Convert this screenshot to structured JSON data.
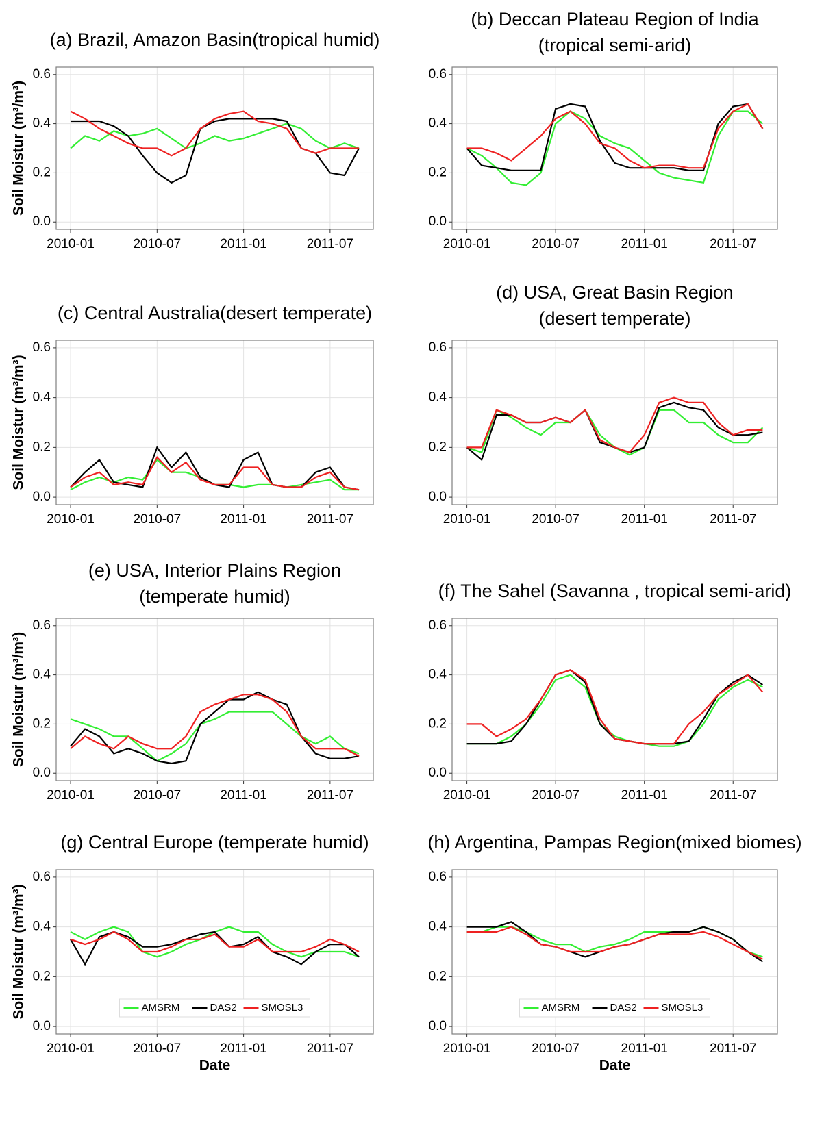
{
  "chart_data": [
    {
      "type": "line",
      "title": [
        "(a) Brazil, Amazon Basin(tropical humid)"
      ],
      "ylabel": "Soil Moistur (m³/m³)",
      "x": [
        "2010-01",
        "2010-02",
        "2010-03",
        "2010-04",
        "2010-05",
        "2010-06",
        "2010-07",
        "2010-08",
        "2010-09",
        "2010-10",
        "2010-11",
        "2010-12",
        "2011-01",
        "2011-02",
        "2011-03",
        "2011-04",
        "2011-05",
        "2011-06",
        "2011-07",
        "2011-08",
        "2011-09"
      ],
      "xlim": [
        "2009-12",
        "2011-10"
      ],
      "xticks": [
        "2010-01",
        "2010-07",
        "2011-01",
        "2011-07"
      ],
      "ylim": [
        -0.03,
        0.63
      ],
      "yticks": [
        {
          "value": 0,
          "label": "0.0"
        },
        0.2,
        0.4,
        0.6
      ],
      "grid": true,
      "series": [
        {
          "color": "#33ee33",
          "values": [
            0.3,
            0.35,
            0.33,
            0.37,
            0.35,
            0.36,
            0.38,
            0.34,
            0.3,
            0.32,
            0.35,
            0.33,
            0.34,
            0.36,
            0.38,
            0.4,
            0.38,
            0.33,
            0.3,
            0.32,
            0.3
          ]
        },
        {
          "color": "#000000",
          "values": [
            0.41,
            0.41,
            0.41,
            0.39,
            0.35,
            0.27,
            0.2,
            0.16,
            0.19,
            0.38,
            0.41,
            0.42,
            0.42,
            0.42,
            0.42,
            0.41,
            0.3,
            0.28,
            0.2,
            0.19,
            0.3
          ]
        },
        {
          "color": "#ee2222",
          "values": [
            0.45,
            0.42,
            0.38,
            0.35,
            0.32,
            0.3,
            0.3,
            0.27,
            0.3,
            0.38,
            0.42,
            0.44,
            0.45,
            0.41,
            0.4,
            0.38,
            0.3,
            0.28,
            0.3,
            0.3,
            0.3
          ]
        }
      ]
    },
    {
      "type": "line",
      "title": [
        "(b) Deccan Plateau Region of India",
        "(tropical semi-arid)"
      ],
      "x": [
        "2010-01",
        "2010-02",
        "2010-03",
        "2010-04",
        "2010-05",
        "2010-06",
        "2010-07",
        "2010-08",
        "2010-09",
        "2010-10",
        "2010-11",
        "2010-12",
        "2011-01",
        "2011-02",
        "2011-03",
        "2011-04",
        "2011-05",
        "2011-06",
        "2011-07",
        "2011-08",
        "2011-09"
      ],
      "xlim": [
        "2009-12",
        "2011-10"
      ],
      "xticks": [
        "2010-01",
        "2010-07",
        "2011-01",
        "2011-07"
      ],
      "ylim": [
        -0.03,
        0.63
      ],
      "yticks": [
        {
          "value": 0,
          "label": "0.0"
        },
        0.2,
        0.4,
        0.6
      ],
      "grid": true,
      "series": [
        {
          "color": "#33ee33",
          "values": [
            0.3,
            0.27,
            0.22,
            0.16,
            0.15,
            0.2,
            0.4,
            0.45,
            0.42,
            0.35,
            0.32,
            0.3,
            0.25,
            0.2,
            0.18,
            0.17,
            0.16,
            0.35,
            0.45,
            0.45,
            0.4
          ]
        },
        {
          "color": "#000000",
          "values": [
            0.3,
            0.23,
            0.22,
            0.21,
            0.21,
            0.21,
            0.46,
            0.48,
            0.47,
            0.33,
            0.24,
            0.22,
            0.22,
            0.22,
            0.22,
            0.21,
            0.21,
            0.4,
            0.47,
            0.48,
            0.38
          ]
        },
        {
          "color": "#ee2222",
          "values": [
            0.3,
            0.3,
            0.28,
            0.25,
            0.3,
            0.35,
            0.42,
            0.45,
            0.4,
            0.32,
            0.3,
            0.25,
            0.22,
            0.23,
            0.23,
            0.22,
            0.22,
            0.38,
            0.45,
            0.48,
            0.38
          ]
        }
      ]
    },
    {
      "type": "line",
      "title": [
        "(c) Central Australia(desert temperate)"
      ],
      "ylabel": "Soil Moistur (m³/m³)",
      "x": [
        "2010-01",
        "2010-02",
        "2010-03",
        "2010-04",
        "2010-05",
        "2010-06",
        "2010-07",
        "2010-08",
        "2010-09",
        "2010-10",
        "2010-11",
        "2010-12",
        "2011-01",
        "2011-02",
        "2011-03",
        "2011-04",
        "2011-05",
        "2011-06",
        "2011-07",
        "2011-08",
        "2011-09"
      ],
      "xlim": [
        "2009-12",
        "2011-10"
      ],
      "xticks": [
        "2010-01",
        "2010-07",
        "2011-01",
        "2011-07"
      ],
      "ylim": [
        -0.03,
        0.63
      ],
      "yticks": [
        {
          "value": 0,
          "label": "0.0"
        },
        0.2,
        0.4,
        0.6
      ],
      "grid": true,
      "series": [
        {
          "color": "#33ee33",
          "values": [
            0.03,
            0.06,
            0.08,
            0.06,
            0.08,
            0.07,
            0.15,
            0.1,
            0.1,
            0.08,
            0.05,
            0.05,
            0.04,
            0.05,
            0.05,
            0.04,
            0.05,
            0.06,
            0.07,
            0.03,
            0.03
          ]
        },
        {
          "color": "#000000",
          "values": [
            0.04,
            0.1,
            0.15,
            0.06,
            0.05,
            0.04,
            0.2,
            0.12,
            0.18,
            0.08,
            0.05,
            0.04,
            0.15,
            0.18,
            0.05,
            0.04,
            0.04,
            0.1,
            0.12,
            0.04,
            0.03
          ]
        },
        {
          "color": "#ee2222",
          "values": [
            0.04,
            0.08,
            0.1,
            0.05,
            0.06,
            0.05,
            0.16,
            0.1,
            0.14,
            0.07,
            0.05,
            0.05,
            0.12,
            0.12,
            0.05,
            0.04,
            0.04,
            0.08,
            0.1,
            0.04,
            0.03
          ]
        }
      ]
    },
    {
      "type": "line",
      "title": [
        "(d) USA, Great Basin Region",
        "(desert temperate)"
      ],
      "x": [
        "2010-01",
        "2010-02",
        "2010-03",
        "2010-04",
        "2010-05",
        "2010-06",
        "2010-07",
        "2010-08",
        "2010-09",
        "2010-10",
        "2010-11",
        "2010-12",
        "2011-01",
        "2011-02",
        "2011-03",
        "2011-04",
        "2011-05",
        "2011-06",
        "2011-07",
        "2011-08",
        "2011-09"
      ],
      "xlim": [
        "2009-12",
        "2011-10"
      ],
      "xticks": [
        "2010-01",
        "2010-07",
        "2011-01",
        "2011-07"
      ],
      "ylim": [
        -0.03,
        0.63
      ],
      "yticks": [
        {
          "value": 0,
          "label": "0.0"
        },
        0.2,
        0.4,
        0.6
      ],
      "grid": true,
      "series": [
        {
          "color": "#33ee33",
          "values": [
            0.2,
            0.18,
            0.35,
            0.32,
            0.28,
            0.25,
            0.3,
            0.3,
            0.35,
            0.25,
            0.2,
            0.17,
            0.2,
            0.35,
            0.35,
            0.3,
            0.3,
            0.25,
            0.22,
            0.22,
            0.28
          ]
        },
        {
          "color": "#000000",
          "values": [
            0.2,
            0.15,
            0.33,
            0.33,
            0.3,
            0.3,
            0.32,
            0.3,
            0.35,
            0.22,
            0.2,
            0.18,
            0.2,
            0.36,
            0.38,
            0.36,
            0.35,
            0.28,
            0.25,
            0.25,
            0.26
          ]
        },
        {
          "color": "#ee2222",
          "values": [
            0.2,
            0.2,
            0.35,
            0.33,
            0.3,
            0.3,
            0.32,
            0.3,
            0.35,
            0.23,
            0.2,
            0.18,
            0.25,
            0.38,
            0.4,
            0.38,
            0.38,
            0.3,
            0.25,
            0.27,
            0.27
          ]
        }
      ]
    },
    {
      "type": "line",
      "title": [
        "(e) USA, Interior Plains Region",
        "(temperate humid)"
      ],
      "ylabel": "Soil Moistur (m³/m³)",
      "x": [
        "2010-01",
        "2010-02",
        "2010-03",
        "2010-04",
        "2010-05",
        "2010-06",
        "2010-07",
        "2010-08",
        "2010-09",
        "2010-10",
        "2010-11",
        "2010-12",
        "2011-01",
        "2011-02",
        "2011-03",
        "2011-04",
        "2011-05",
        "2011-06",
        "2011-07",
        "2011-08",
        "2011-09"
      ],
      "xlim": [
        "2009-12",
        "2011-10"
      ],
      "xticks": [
        "2010-01",
        "2010-07",
        "2011-01",
        "2011-07"
      ],
      "ylim": [
        -0.03,
        0.63
      ],
      "yticks": [
        {
          "value": 0,
          "label": "0.0"
        },
        0.2,
        0.4,
        0.6
      ],
      "grid": true,
      "series": [
        {
          "color": "#33ee33",
          "values": [
            0.22,
            0.2,
            0.18,
            0.15,
            0.15,
            0.1,
            0.05,
            0.08,
            0.12,
            0.2,
            0.22,
            0.25,
            0.25,
            0.25,
            0.25,
            0.2,
            0.15,
            0.12,
            0.15,
            0.1,
            0.08
          ]
        },
        {
          "color": "#000000",
          "values": [
            0.11,
            0.18,
            0.15,
            0.08,
            0.1,
            0.08,
            0.05,
            0.04,
            0.05,
            0.2,
            0.25,
            0.3,
            0.3,
            0.33,
            0.3,
            0.28,
            0.15,
            0.08,
            0.06,
            0.06,
            0.07
          ]
        },
        {
          "color": "#ee2222",
          "values": [
            0.1,
            0.15,
            0.12,
            0.1,
            0.15,
            0.12,
            0.1,
            0.1,
            0.15,
            0.25,
            0.28,
            0.3,
            0.32,
            0.32,
            0.3,
            0.25,
            0.15,
            0.1,
            0.1,
            0.1,
            0.07
          ]
        }
      ]
    },
    {
      "type": "line",
      "title": [
        "(f) The Sahel (Savanna , tropical semi-arid)"
      ],
      "x": [
        "2010-01",
        "2010-02",
        "2010-03",
        "2010-04",
        "2010-05",
        "2010-06",
        "2010-07",
        "2010-08",
        "2010-09",
        "2010-10",
        "2010-11",
        "2010-12",
        "2011-01",
        "2011-02",
        "2011-03",
        "2011-04",
        "2011-05",
        "2011-06",
        "2011-07",
        "2011-08",
        "2011-09"
      ],
      "xlim": [
        "2009-12",
        "2011-10"
      ],
      "xticks": [
        "2010-01",
        "2010-07",
        "2011-01",
        "2011-07"
      ],
      "ylim": [
        -0.03,
        0.63
      ],
      "yticks": [
        {
          "value": 0,
          "label": "0.0"
        },
        0.2,
        0.4,
        0.6
      ],
      "grid": true,
      "series": [
        {
          "color": "#33ee33",
          "values": [
            0.12,
            0.12,
            0.12,
            0.15,
            0.2,
            0.28,
            0.38,
            0.4,
            0.35,
            0.2,
            0.15,
            0.13,
            0.12,
            0.11,
            0.11,
            0.13,
            0.2,
            0.3,
            0.35,
            0.38,
            0.35
          ]
        },
        {
          "color": "#000000",
          "values": [
            0.12,
            0.12,
            0.12,
            0.13,
            0.2,
            0.3,
            0.4,
            0.42,
            0.37,
            0.2,
            0.14,
            0.13,
            0.12,
            0.12,
            0.12,
            0.13,
            0.22,
            0.32,
            0.37,
            0.4,
            0.36
          ]
        },
        {
          "color": "#ee2222",
          "values": [
            0.2,
            0.2,
            0.15,
            0.18,
            0.22,
            0.3,
            0.4,
            0.42,
            0.38,
            0.22,
            0.14,
            0.13,
            0.12,
            0.12,
            0.12,
            0.2,
            0.25,
            0.32,
            0.36,
            0.4,
            0.33
          ]
        }
      ]
    },
    {
      "type": "line",
      "title": [
        "(g) Central Europe (temperate humid)"
      ],
      "ylabel": "Soil Moistur (m³/m³)",
      "xlabel": "Date",
      "legend": "bottom",
      "x": [
        "2010-01",
        "2010-02",
        "2010-03",
        "2010-04",
        "2010-05",
        "2010-06",
        "2010-07",
        "2010-08",
        "2010-09",
        "2010-10",
        "2010-11",
        "2010-12",
        "2011-01",
        "2011-02",
        "2011-03",
        "2011-04",
        "2011-05",
        "2011-06",
        "2011-07",
        "2011-08",
        "2011-09"
      ],
      "xlim": [
        "2009-12",
        "2011-10"
      ],
      "xticks": [
        "2010-01",
        "2010-07",
        "2011-01",
        "2011-07"
      ],
      "ylim": [
        -0.03,
        0.63
      ],
      "yticks": [
        {
          "value": 0,
          "label": "0.0"
        },
        0.2,
        0.4,
        0.6
      ],
      "grid": true,
      "series": [
        {
          "name": "AMSRM",
          "color": "#33ee33",
          "values": [
            0.38,
            0.35,
            0.38,
            0.4,
            0.38,
            0.3,
            0.28,
            0.3,
            0.33,
            0.35,
            0.38,
            0.4,
            0.38,
            0.38,
            0.33,
            0.3,
            0.28,
            0.3,
            0.3,
            0.3,
            0.28
          ]
        },
        {
          "name": "DAS2",
          "color": "#000000",
          "values": [
            0.35,
            0.25,
            0.36,
            0.38,
            0.36,
            0.32,
            0.32,
            0.33,
            0.35,
            0.37,
            0.38,
            0.32,
            0.33,
            0.36,
            0.3,
            0.28,
            0.25,
            0.3,
            0.33,
            0.33,
            0.28
          ]
        },
        {
          "name": "SMOSL3",
          "color": "#ee2222",
          "values": [
            0.35,
            0.33,
            0.35,
            0.38,
            0.35,
            0.3,
            0.3,
            0.32,
            0.35,
            0.35,
            0.37,
            0.32,
            0.32,
            0.35,
            0.3,
            0.3,
            0.3,
            0.32,
            0.35,
            0.33,
            0.3
          ]
        }
      ]
    },
    {
      "type": "line",
      "title": [
        "(h) Argentina, Pampas Region(mixed biomes)"
      ],
      "xlabel": "Date",
      "legend": "bottom",
      "x": [
        "2010-01",
        "2010-02",
        "2010-03",
        "2010-04",
        "2010-05",
        "2010-06",
        "2010-07",
        "2010-08",
        "2010-09",
        "2010-10",
        "2010-11",
        "2010-12",
        "2011-01",
        "2011-02",
        "2011-03",
        "2011-04",
        "2011-05",
        "2011-06",
        "2011-07",
        "2011-08",
        "2011-09"
      ],
      "xlim": [
        "2009-12",
        "2011-10"
      ],
      "xticks": [
        "2010-01",
        "2010-07",
        "2011-01",
        "2011-07"
      ],
      "ylim": [
        -0.03,
        0.63
      ],
      "yticks": [
        {
          "value": 0,
          "label": "0.0"
        },
        0.2,
        0.4,
        0.6
      ],
      "grid": true,
      "series": [
        {
          "name": "AMSRM",
          "color": "#33ee33",
          "values": [
            0.38,
            0.38,
            0.4,
            0.4,
            0.38,
            0.35,
            0.33,
            0.33,
            0.3,
            0.32,
            0.33,
            0.35,
            0.38,
            0.38,
            0.38,
            0.38,
            0.4,
            0.38,
            0.35,
            0.3,
            0.28
          ]
        },
        {
          "name": "DAS2",
          "color": "#000000",
          "values": [
            0.4,
            0.4,
            0.4,
            0.42,
            0.38,
            0.33,
            0.32,
            0.3,
            0.28,
            0.3,
            0.32,
            0.33,
            0.35,
            0.37,
            0.38,
            0.38,
            0.4,
            0.38,
            0.35,
            0.3,
            0.26
          ]
        },
        {
          "name": "SMOSL3",
          "color": "#ee2222",
          "values": [
            0.38,
            0.38,
            0.38,
            0.4,
            0.37,
            0.33,
            0.32,
            0.3,
            0.3,
            0.3,
            0.32,
            0.33,
            0.35,
            0.37,
            0.37,
            0.37,
            0.38,
            0.36,
            0.33,
            0.3,
            0.27
          ]
        }
      ]
    }
  ]
}
